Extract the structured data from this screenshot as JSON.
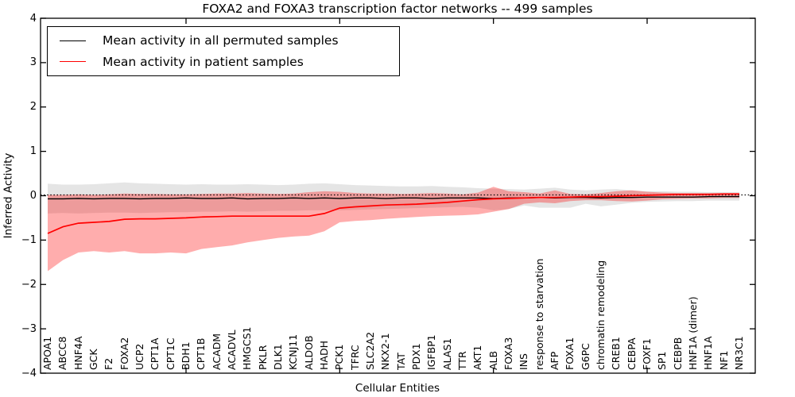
{
  "figure": {
    "background": "#ffffff"
  },
  "chart_data": {
    "type": "line",
    "title": "FOXA2 and FOXA3 transcription factor networks -- 499 samples",
    "xlabel": "Cellular Entities",
    "ylabel": "Inferred Activity",
    "ylim": [
      -4,
      4
    ],
    "grid": false,
    "legend_position": "upper left",
    "yticks": [
      "4",
      "3",
      "2",
      "1",
      "0",
      "−1",
      "−2",
      "−3",
      "−4"
    ],
    "categories": [
      "APOA1",
      "ABCC8",
      "HNF4A",
      "GCK",
      "F2",
      "FOXA2",
      "UCP2",
      "CPT1A",
      "CPT1C",
      "BDH1",
      "CPT1B",
      "ACADM",
      "ACADVL",
      "HMGCS1",
      "PKLR",
      "DLK1",
      "KCNJ11",
      "ALDOB",
      "HADH",
      "PCK1",
      "TFRC",
      "SLC2A2",
      "NKX2-1",
      "TAT",
      "PDX1",
      "IGFBP1",
      "ALAS1",
      "TTR",
      "AKT1",
      "ALB",
      "FOXA3",
      "INS",
      "response to starvation",
      "AFP",
      "FOXA1",
      "G6PC",
      "chromatin remodeling",
      "CREB1",
      "CEBPA",
      "FOXF1",
      "SP1",
      "CEBPB",
      "HNF1A (dimer)",
      "HNF1A",
      "NF1",
      "NR3C1"
    ],
    "series": [
      {
        "name": "Mean activity in all permuted samples",
        "color": "#000000",
        "values": [
          -0.07,
          -0.07,
          -0.06,
          -0.07,
          -0.06,
          -0.06,
          -0.07,
          -0.06,
          -0.06,
          -0.05,
          -0.06,
          -0.06,
          -0.05,
          -0.07,
          -0.06,
          -0.06,
          -0.05,
          -0.06,
          -0.05,
          -0.06,
          -0.05,
          -0.05,
          -0.06,
          -0.05,
          -0.05,
          -0.06,
          -0.05,
          -0.05,
          -0.05,
          -0.06,
          -0.05,
          -0.05,
          -0.04,
          -0.05,
          -0.04,
          -0.04,
          -0.05,
          -0.04,
          -0.04,
          -0.03,
          -0.03,
          -0.03,
          -0.03,
          -0.02,
          -0.02,
          -0.02
        ]
      },
      {
        "name": "Mean activity in patient samples",
        "color": "#ff0000",
        "values": [
          -0.85,
          -0.7,
          -0.62,
          -0.6,
          -0.58,
          -0.53,
          -0.52,
          -0.52,
          -0.51,
          -0.5,
          -0.48,
          -0.47,
          -0.46,
          -0.46,
          -0.46,
          -0.46,
          -0.46,
          -0.46,
          -0.4,
          -0.28,
          -0.25,
          -0.23,
          -0.21,
          -0.2,
          -0.19,
          -0.17,
          -0.15,
          -0.12,
          -0.09,
          -0.07,
          -0.06,
          -0.05,
          -0.04,
          -0.04,
          -0.03,
          -0.02,
          -0.02,
          -0.01,
          0.0,
          0.01,
          0.02,
          0.03,
          0.03,
          0.03,
          0.04,
          0.04
        ]
      }
    ],
    "bands": [
      {
        "name": "permuted-samples-std-band",
        "color": "rgba(0,0,0,0.10)",
        "upper": [
          0.27,
          0.25,
          0.25,
          0.26,
          0.28,
          0.3,
          0.28,
          0.27,
          0.26,
          0.25,
          0.26,
          0.25,
          0.25,
          0.26,
          0.25,
          0.24,
          0.25,
          0.27,
          0.28,
          0.26,
          0.24,
          0.23,
          0.22,
          0.21,
          0.21,
          0.22,
          0.2,
          0.19,
          0.17,
          0.16,
          0.15,
          0.14,
          0.16,
          0.18,
          0.14,
          0.12,
          0.14,
          0.15,
          0.12,
          0.1,
          0.1,
          0.09,
          0.09,
          0.08,
          0.08,
          0.08
        ],
        "lower": [
          -0.4,
          -0.39,
          -0.4,
          -0.39,
          -0.38,
          -0.38,
          -0.39,
          -0.38,
          -0.37,
          -0.37,
          -0.36,
          -0.36,
          -0.35,
          -0.36,
          -0.35,
          -0.34,
          -0.34,
          -0.33,
          -0.33,
          -0.33,
          -0.32,
          -0.31,
          -0.3,
          -0.29,
          -0.28,
          -0.27,
          -0.26,
          -0.25,
          -0.27,
          -0.33,
          -0.3,
          -0.22,
          -0.27,
          -0.27,
          -0.27,
          -0.18,
          -0.24,
          -0.2,
          -0.16,
          -0.14,
          -0.13,
          -0.12,
          -0.12,
          -0.11,
          -0.11,
          -0.11
        ]
      },
      {
        "name": "patient-samples-std-band",
        "color": "rgba(255,0,0,0.32)",
        "upper": [
          0.02,
          0.02,
          0.03,
          0.02,
          0.03,
          0.05,
          0.04,
          0.04,
          0.03,
          0.03,
          0.04,
          0.05,
          0.05,
          0.06,
          0.05,
          0.04,
          0.05,
          0.08,
          0.1,
          0.09,
          0.06,
          0.05,
          0.05,
          0.04,
          0.05,
          0.06,
          0.05,
          0.03,
          0.07,
          0.2,
          0.1,
          0.08,
          0.05,
          0.12,
          0.04,
          0.03,
          0.06,
          0.1,
          0.12,
          0.09,
          0.07,
          0.06,
          0.06,
          0.06,
          0.06,
          0.06
        ],
        "lower": [
          -1.7,
          -1.45,
          -1.28,
          -1.25,
          -1.28,
          -1.25,
          -1.3,
          -1.3,
          -1.28,
          -1.3,
          -1.2,
          -1.16,
          -1.12,
          -1.05,
          -1.0,
          -0.95,
          -0.92,
          -0.9,
          -0.8,
          -0.6,
          -0.57,
          -0.55,
          -0.52,
          -0.5,
          -0.48,
          -0.46,
          -0.45,
          -0.44,
          -0.42,
          -0.36,
          -0.3,
          -0.18,
          -0.15,
          -0.17,
          -0.12,
          -0.1,
          -0.1,
          -0.12,
          -0.13,
          -0.11,
          -0.08,
          -0.07,
          -0.06,
          -0.06,
          -0.05,
          -0.05
        ]
      }
    ],
    "zero_line": {
      "style": "dotted",
      "color": "#000000",
      "y": 0
    },
    "axis_ticks_at_categories": [
      10,
      20,
      30,
      40
    ]
  }
}
